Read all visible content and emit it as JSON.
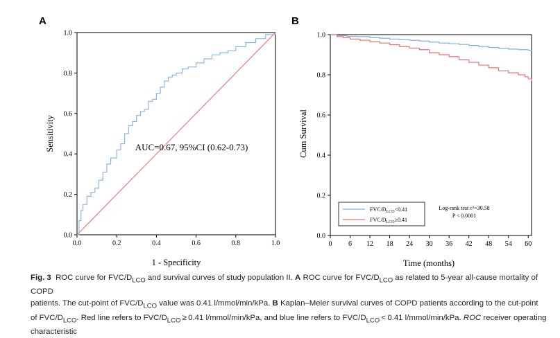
{
  "chart_data": [
    {
      "panel_label": "A",
      "type": "line",
      "xlabel": "1 - Specificity",
      "ylabel": "Sensitivity",
      "xlim": [
        0.0,
        1.0
      ],
      "ylim": [
        0.0,
        1.0
      ],
      "xticks": [
        "0.0",
        "0.2",
        "0.4",
        "0.6",
        "0.8",
        "1.0"
      ],
      "yticks": [
        "0.0",
        "0.2",
        "0.4",
        "0.6",
        "0.8",
        "1.0"
      ],
      "annotation": "AUC=0.67, 95%CI (0.62-0.73)",
      "grid": false,
      "series": [
        {
          "color": "#7fb2e0",
          "x": [
            0.0,
            0.01,
            0.02,
            0.03,
            0.05,
            0.07,
            0.09,
            0.11,
            0.13,
            0.15,
            0.17,
            0.2,
            0.22,
            0.24,
            0.26,
            0.28,
            0.3,
            0.32,
            0.34,
            0.36,
            0.38,
            0.4,
            0.42,
            0.44,
            0.46,
            0.48,
            0.5,
            0.53,
            0.56,
            0.6,
            0.64,
            0.68,
            0.72,
            0.76,
            0.8,
            0.85,
            0.9,
            0.95,
            1.0
          ],
          "y": [
            0.0,
            0.07,
            0.12,
            0.15,
            0.19,
            0.21,
            0.23,
            0.27,
            0.31,
            0.35,
            0.38,
            0.42,
            0.45,
            0.5,
            0.54,
            0.56,
            0.59,
            0.61,
            0.62,
            0.66,
            0.67,
            0.7,
            0.73,
            0.76,
            0.78,
            0.79,
            0.8,
            0.82,
            0.83,
            0.85,
            0.87,
            0.89,
            0.9,
            0.91,
            0.93,
            0.95,
            0.97,
            0.99,
            1.0
          ]
        },
        {
          "color": "#f07070",
          "x": [
            0.0,
            1.0
          ],
          "y": [
            0.0,
            1.0
          ]
        }
      ]
    },
    {
      "panel_label": "B",
      "type": "line",
      "xlabel": "Time (months)",
      "ylabel": "Cum Survival",
      "xlim": [
        0,
        61
      ],
      "ylim": [
        0.0,
        1.0
      ],
      "xticks": [
        "0",
        "6",
        "12",
        "18",
        "24",
        "30",
        "36",
        "42",
        "48",
        "54",
        "60"
      ],
      "yticks": [
        "0.0",
        "0.2",
        "0.4",
        "0.6",
        "0.8",
        "1.0"
      ],
      "grid": false,
      "annotation": [
        "Log-rank test c²=30.58",
        "P < 0.0001"
      ],
      "legend_placement": "bottom-left",
      "legend": [
        {
          "label_main": "FVC/D",
          "label_sub": "LCO",
          "label_tail": "<0.41",
          "color": "#7fb2e0"
        },
        {
          "label_main": "FVC/D",
          "label_sub": "LCO",
          "label_tail": "≥0.41",
          "color": "#f07070"
        }
      ],
      "series": [
        {
          "color": "#7fb2e0",
          "x": [
            0,
            2,
            5,
            8,
            12,
            15,
            18,
            21,
            24,
            27,
            30,
            33,
            36,
            39,
            42,
            45,
            48,
            51,
            54,
            57,
            60,
            61
          ],
          "y": [
            1.0,
            0.995,
            0.992,
            0.99,
            0.985,
            0.982,
            0.978,
            0.975,
            0.972,
            0.968,
            0.963,
            0.958,
            0.955,
            0.951,
            0.946,
            0.941,
            0.936,
            0.932,
            0.928,
            0.925,
            0.922,
            0.921
          ]
        },
        {
          "color": "#f07070",
          "x": [
            0,
            2,
            4,
            6,
            9,
            12,
            15,
            18,
            21,
            24,
            27,
            30,
            33,
            36,
            39,
            42,
            45,
            48,
            51,
            54,
            57,
            59,
            60,
            61
          ],
          "y": [
            1.0,
            0.99,
            0.985,
            0.978,
            0.972,
            0.965,
            0.958,
            0.95,
            0.94,
            0.933,
            0.925,
            0.91,
            0.9,
            0.89,
            0.875,
            0.862,
            0.848,
            0.835,
            0.82,
            0.81,
            0.8,
            0.79,
            0.78,
            0.77
          ]
        }
      ]
    }
  ],
  "caption": {
    "lines": [
      {
        "html": "<b>Fig. 3</b>&nbsp; ROC curve for FVC/D<sub>LCO</sub> and survival curves of study population II. <b>A</b> ROC curve for FVC/D<sub>LCO</sub> as related to 5-year all-cause mortality of COPD"
      },
      {
        "html": "patients. The cut-point of FVC/D<sub>LCO</sub> value was 0.41 l/mmol/min/kPa. <b>B</b> Kaplan–Meier survival curves of COPD patients according to the cut-point"
      },
      {
        "html": "of FVC/D<sub>LCO</sub>. Red line refers to FVC/D<sub>LCO</sub> ≥ 0.41 l/mmol/min/kPa, and blue line refers to FVC/D<sub>LCO</sub> &lt; 0.41 l/mmol/min/kPa. <i>ROC</i> receiver operating"
      },
      {
        "html": "characteristic"
      }
    ]
  }
}
